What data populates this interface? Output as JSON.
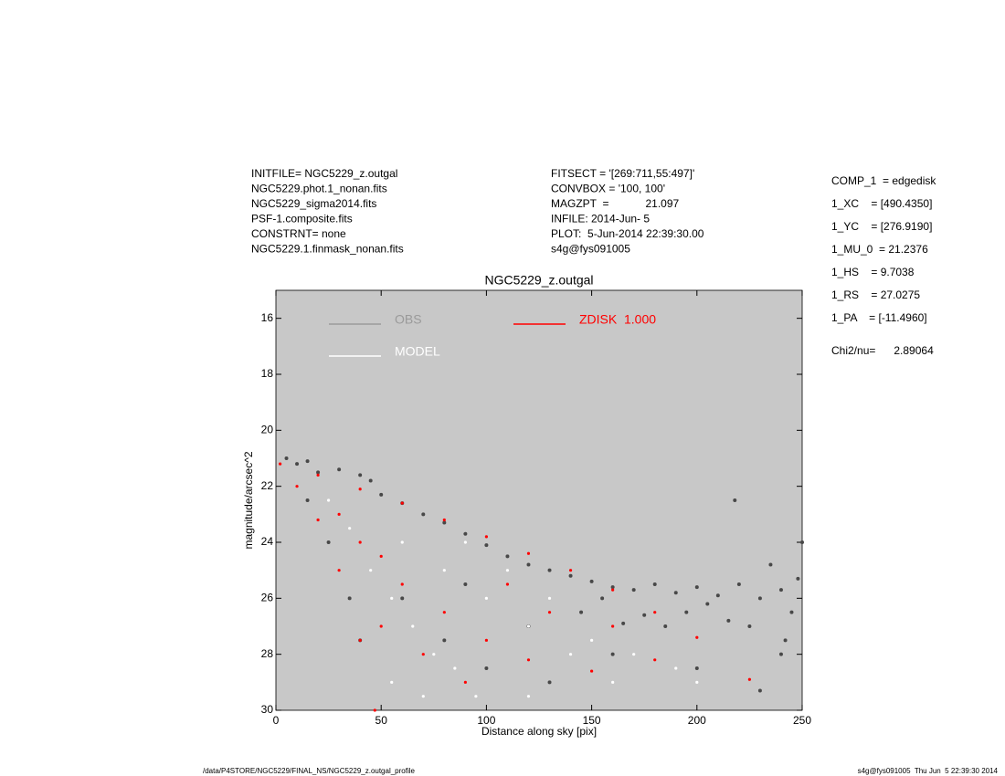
{
  "header": {
    "left": [
      "INITFILE= NGC5229_z.outgal",
      "NGC5229.phot.1_nonan.fits",
      "NGC5229_sigma2014.fits",
      "PSF-1.composite.fits",
      "CONSTRNT= none",
      "NGC5229.1.finmask_nonan.fits"
    ],
    "middle": [
      "FITSECT = '[269:711,55:497]'",
      "CONVBOX = '100, 100'",
      "MAGZPT  =            21.097",
      "INFILE: 2014-Jun- 5",
      "PLOT:  5-Jun-2014 22:39:30.00",
      "s4g@fys091005"
    ],
    "components": [
      "COMP_1  = edgedisk",
      "1_XC    = [490.4350]",
      "1_YC    = [276.9190]",
      "1_MU_0  = 21.2376",
      "1_HS    = 9.7038",
      "1_RS    = 27.0275",
      "1_PA    = [-11.4960]"
    ],
    "chi2": "Chi2/nu=      2.89064"
  },
  "chart_data": {
    "type": "scatter",
    "title": "NGC5229_z.outgal",
    "x_label": "Distance along sky [pix]",
    "y_label": "magnitude/arcsec^2",
    "xlim": [
      0,
      250
    ],
    "xticks": [
      0,
      50,
      100,
      150,
      200,
      250
    ],
    "ylim": [
      15,
      30
    ],
    "yticks": [
      16,
      18,
      20,
      22,
      24,
      26,
      28,
      30
    ],
    "y_inverted": true,
    "background": "#c8c8c8",
    "series": [
      {
        "name": "OBS",
        "color": "#484848",
        "legend_color": "#9a9a9a",
        "x": [
          5,
          10,
          15,
          20,
          30,
          40,
          45,
          50,
          60,
          70,
          80,
          90,
          100,
          110,
          120,
          130,
          140,
          150,
          160,
          170,
          180,
          190,
          200,
          210,
          220,
          230,
          240,
          248,
          245,
          235,
          225,
          215,
          205,
          195,
          185,
          175,
          165,
          155,
          145,
          240,
          250,
          242,
          218,
          15,
          25,
          35,
          40,
          60,
          80,
          100,
          130,
          160,
          200,
          230,
          120,
          90
        ],
        "values": [
          21.0,
          21.2,
          21.1,
          21.5,
          21.4,
          21.6,
          21.8,
          22.3,
          22.6,
          23.0,
          23.3,
          23.7,
          24.1,
          24.5,
          24.8,
          25.0,
          25.2,
          25.4,
          25.6,
          25.7,
          25.5,
          25.8,
          25.6,
          25.9,
          25.5,
          26.0,
          25.7,
          25.3,
          26.5,
          24.8,
          27.0,
          26.8,
          26.2,
          26.5,
          27.0,
          26.6,
          26.9,
          26.0,
          26.5,
          28.0,
          24.0,
          27.5,
          22.5,
          22.5,
          24.0,
          26.0,
          27.5,
          26.0,
          27.5,
          28.5,
          29.0,
          28.0,
          28.5,
          29.3,
          27.0,
          25.5
        ]
      },
      {
        "name": "MODEL",
        "color": "#ffffff",
        "legend_color": "#ffffff",
        "x": [
          25,
          35,
          45,
          55,
          65,
          75,
          85,
          95,
          60,
          80,
          100,
          120,
          140,
          160,
          90,
          110,
          130,
          150,
          170,
          190,
          70,
          55,
          120,
          200
        ],
        "values": [
          22.5,
          23.5,
          25.0,
          26.0,
          27.0,
          28.0,
          28.5,
          29.5,
          24.0,
          25.0,
          26.0,
          27.0,
          28.0,
          29.0,
          24.0,
          25.0,
          26.0,
          27.5,
          28.0,
          28.5,
          29.5,
          29.0,
          29.5,
          29.0
        ]
      },
      {
        "name": "ZDISK  1.000",
        "color": "#ff0000",
        "legend_color": "#ff0000",
        "x": [
          2,
          20,
          40,
          60,
          80,
          100,
          120,
          140,
          160,
          180,
          200,
          225,
          10,
          20,
          30,
          40,
          47,
          30,
          50,
          60,
          80,
          100,
          120,
          150,
          70,
          90,
          180,
          50,
          40,
          130,
          110,
          160
        ],
        "values": [
          21.2,
          21.6,
          22.1,
          22.6,
          23.2,
          23.8,
          24.4,
          25.0,
          25.7,
          26.5,
          27.4,
          28.9,
          22.0,
          23.2,
          25.0,
          27.5,
          30.0,
          23.0,
          24.5,
          25.5,
          26.5,
          27.5,
          28.2,
          28.6,
          28.0,
          29.0,
          28.2,
          27.0,
          24.0,
          26.5,
          25.5,
          27.0
        ]
      }
    ]
  },
  "footer": {
    "left": "/data/P4STORE/NGC5229/FINAL_NS/NGC5229_z.outgal_profile",
    "right": "s4g@fys091005  Thu Jun  5 22:39:30 2014"
  }
}
